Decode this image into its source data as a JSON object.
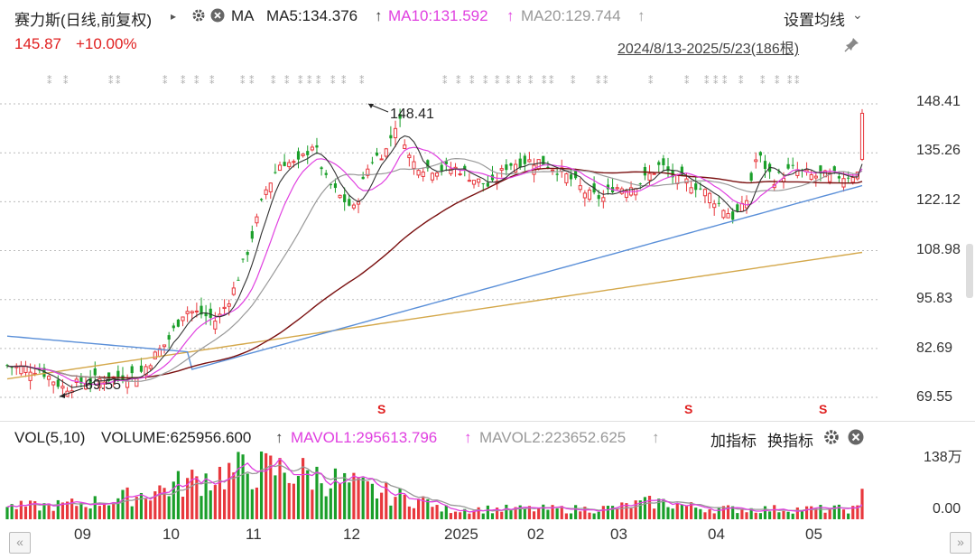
{
  "header": {
    "stock_title": "赛力斯(日线,前复权)",
    "play_icon": "▸",
    "ma_label": "MA",
    "ma5": "MA5:134.376",
    "ma10": "MA10:131.592",
    "ma20": "MA20:129.744",
    "arrow": "↑",
    "settings_label": "设置均线",
    "settings_chevron": "⌄"
  },
  "quote": {
    "price": "145.87",
    "change": "+10.00%",
    "range": "2024/8/13-2025/5/23(186根)"
  },
  "price_axis": [
    "148.41",
    "135.26",
    "122.12",
    "108.98",
    "95.83",
    "82.69",
    "69.55"
  ],
  "annotations": {
    "high": "148.41",
    "low": "69.55",
    "signal_glyph": "S"
  },
  "volume_panel": {
    "title": "VOL(5,10)",
    "volume": "VOLUME:625956.600",
    "mavol1": "MAVOL1:295613.796",
    "mavol2": "MAVOL2:223652.625",
    "arrow": "↑",
    "add_indicator": "加指标",
    "switch_indicator": "换指标",
    "axis_top": "138万",
    "axis_bottom": "0.00"
  },
  "time_axis": [
    "09",
    "10",
    "11",
    "12",
    "2025",
    "02",
    "03",
    "04",
    "05"
  ],
  "colors": {
    "up": "#e8383d",
    "down": "#1a9f2a",
    "ma5": "#333333",
    "ma10": "#e040e0",
    "ma20": "#999999",
    "ma60": "#7a1010",
    "ma120": "#5a8fd8",
    "ma250": "#d4a84b",
    "accent_text": "#e02020"
  },
  "chart_data": {
    "type": "candlestick",
    "ylim": [
      69.55,
      148.41
    ],
    "y_ticks": [
      148.41,
      135.26,
      122.12,
      108.98,
      95.83,
      82.69,
      69.55
    ],
    "x_months": [
      "09",
      "10",
      "11",
      "12",
      "2025",
      "02",
      "03",
      "04",
      "05"
    ],
    "high_marker": 148.41,
    "low_marker": 69.55,
    "last_close": 145.87,
    "last_change_pct": 10.0,
    "ma": {
      "MA5": 134.376,
      "MA10": 131.592,
      "MA20": 129.744
    },
    "volume": {
      "VOLUME": 625956.6,
      "MAVOL1": 295613.796,
      "MAVOL2": 223652.625,
      "ymax_label": "138万"
    },
    "bars": 186
  }
}
